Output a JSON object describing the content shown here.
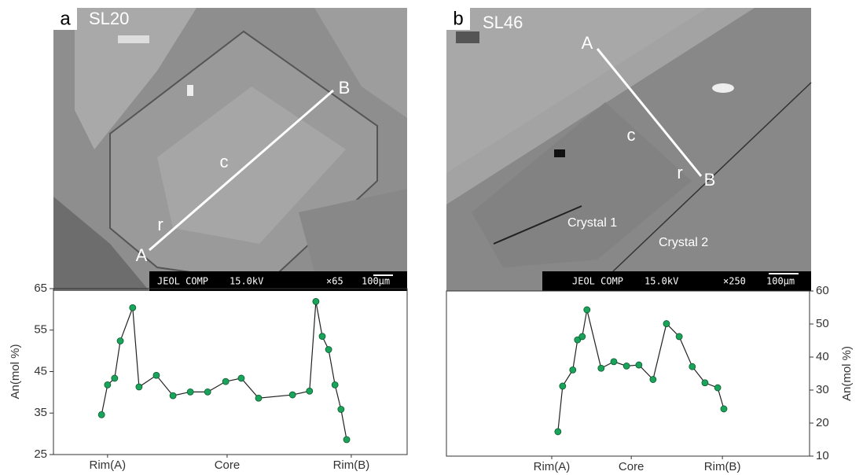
{
  "panels": [
    {
      "label": "a",
      "sample": "SL20",
      "points": [
        "A",
        "B"
      ],
      "zones": [
        "r",
        "c"
      ],
      "scale": {
        "instrument": "JEOL COMP",
        "voltage": "15.0kV",
        "magnification": "×65",
        "bar": "100μm"
      }
    },
    {
      "label": "b",
      "sample": "SL46",
      "points": [
        "A",
        "B"
      ],
      "zones": [
        "c",
        "r"
      ],
      "crystals": [
        "Crystal 1",
        "Crystal 2"
      ],
      "scale": {
        "instrument": "JEOL COMP",
        "voltage": "15.0kV",
        "magnification": "×250",
        "bar": "100μm"
      }
    }
  ],
  "chart_data": [
    {
      "type": "line",
      "y_label": "An(mol %)",
      "y_axis_side": "left",
      "x": [
        13.6,
        15.3,
        17.3,
        18.9,
        22.4,
        24.2,
        29.1,
        33.8,
        38.7,
        43.6,
        48.7,
        53.1,
        58.0,
        67.6,
        72.4,
        74.2,
        76.0,
        77.8,
        79.6,
        81.3,
        82.9
      ],
      "values": [
        34.6,
        41.8,
        43.4,
        52.4,
        60.4,
        41.3,
        44.1,
        39.2,
        40.1,
        40.1,
        42.6,
        43.4,
        38.6,
        39.4,
        40.3,
        61.9,
        53.5,
        50.3,
        41.8,
        35.9,
        28.6
      ],
      "xlim": [
        0,
        100
      ],
      "xticks": [
        {
          "value": 15.3,
          "label": "Rim(A)"
        },
        {
          "value": 49.1,
          "label": "Core"
        },
        {
          "value": 84.2,
          "label": "Rim(B)"
        }
      ],
      "ylim": [
        25,
        65
      ],
      "yticks": [
        25,
        35,
        45,
        55,
        65
      ],
      "line_color": "#222222",
      "marker_color": "#1aa35a"
    },
    {
      "type": "line",
      "y_label": "An(mol %)",
      "y_axis_side": "right",
      "x": [
        30.7,
        32.0,
        34.8,
        36.1,
        37.4,
        38.7,
        42.6,
        46.1,
        49.6,
        53.0,
        56.9,
        60.6,
        64.1,
        67.7,
        71.2,
        74.7,
        76.4
      ],
      "values": [
        17.4,
        31.2,
        36.1,
        45.2,
        46.2,
        54.3,
        36.6,
        38.6,
        37.3,
        37.6,
        33.2,
        50.1,
        46.2,
        37.1,
        32.2,
        30.7,
        24.3
      ],
      "xlim": [
        0,
        100
      ],
      "xticks": [
        {
          "value": 29.0,
          "label": "Rim(A)"
        },
        {
          "value": 50.9,
          "label": "Core"
        },
        {
          "value": 76.0,
          "label": "Rim(B)"
        }
      ],
      "ylim": [
        10,
        60
      ],
      "yticks": [
        10,
        20,
        30,
        40,
        50,
        60
      ],
      "line_color": "#222222",
      "marker_color": "#1aa35a"
    }
  ]
}
